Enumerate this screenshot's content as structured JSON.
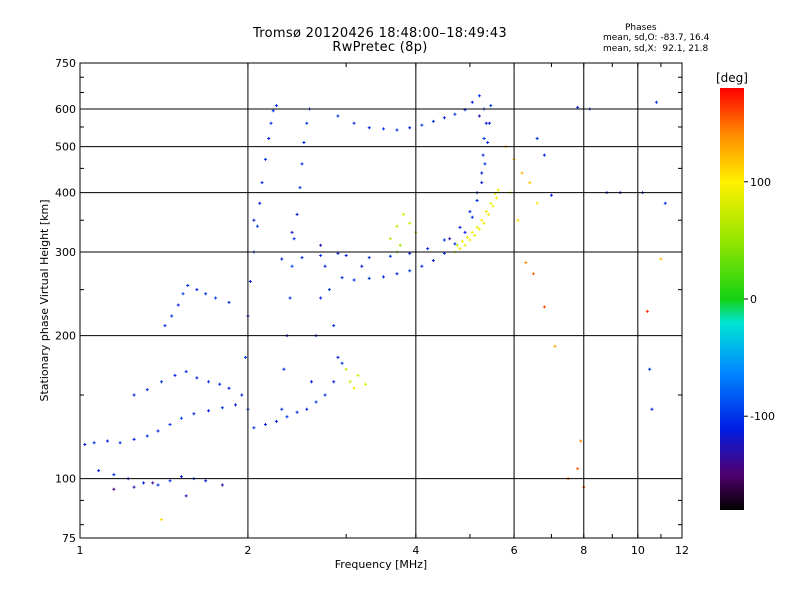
{
  "header": {
    "title_line1": "Tromsø 20120426 18:48:00–18:49:43",
    "title_line2": "RwPretec (8p)"
  },
  "phases_box": {
    "heading": "Phases",
    "line1": "mean, sd,O: -83.7, 16.4",
    "line2": "mean, sd,X:  92.1, 21.8"
  },
  "colorbar": {
    "unit_label": "[deg]",
    "tick_labels": [
      "100",
      "0",
      "-100"
    ],
    "ticks": [
      100,
      0,
      -100
    ],
    "range": [
      -180,
      180
    ]
  },
  "chart_data": {
    "type": "scatter",
    "title": "Tromsø 20120426 18:48:00–18:49:43",
    "subtitle": "RwPretec (8p)",
    "xlabel": "Frequency [MHz]",
    "ylabel": "Stationary phase Virtual Height [km]",
    "x_scale": "log",
    "y_scale": "log",
    "xlim": [
      1,
      12
    ],
    "ylim": [
      75,
      750
    ],
    "x_ticks": [
      1,
      2,
      4,
      6,
      8,
      10,
      12
    ],
    "x_tick_labels": [
      "1",
      "2",
      "4",
      "6",
      "8",
      "10",
      "12"
    ],
    "x_gridlines": [
      2,
      4,
      6,
      8,
      10
    ],
    "y_ticks": [
      75,
      100,
      200,
      300,
      400,
      500,
      600,
      750
    ],
    "y_tick_labels": [
      "75",
      "100",
      "200",
      "300",
      "400",
      "500",
      "600",
      "750"
    ],
    "y_gridlines": [
      100,
      200,
      300,
      400,
      500,
      600
    ],
    "grid": true,
    "colormap": "rainbow (black-purple-blue-cyan-green-yellow-red)",
    "color_quantity": "phase [deg]",
    "series": [
      {
        "points": [
          [
            1.02,
            118,
            -110
          ],
          [
            1.06,
            119,
            -105
          ],
          [
            1.12,
            120,
            -110
          ],
          [
            1.18,
            119,
            -100
          ],
          [
            1.25,
            121,
            -110
          ],
          [
            1.32,
            123,
            -105
          ],
          [
            1.38,
            126,
            -110
          ],
          [
            1.45,
            130,
            -100
          ],
          [
            1.52,
            134,
            -95
          ],
          [
            1.6,
            137,
            -105
          ],
          [
            1.7,
            139,
            -110
          ],
          [
            1.8,
            141,
            -100
          ],
          [
            1.9,
            143,
            -110
          ],
          [
            2.0,
            140,
            -95
          ],
          [
            1.08,
            104,
            -110
          ],
          [
            1.15,
            102,
            -105
          ],
          [
            1.22,
            100,
            -115
          ],
          [
            1.3,
            98,
            -110
          ],
          [
            1.38,
            97,
            -105
          ],
          [
            1.45,
            99,
            -100
          ],
          [
            1.52,
            101,
            -110
          ],
          [
            1.6,
            100,
            -105
          ],
          [
            1.68,
            99,
            -115
          ],
          [
            1.25,
            150,
            -110
          ],
          [
            1.32,
            154,
            -105
          ],
          [
            1.4,
            160,
            -100
          ],
          [
            1.48,
            165,
            -110
          ],
          [
            1.55,
            168,
            -105
          ],
          [
            1.62,
            163,
            -110
          ],
          [
            1.7,
            160,
            -100
          ],
          [
            1.78,
            158,
            -105
          ],
          [
            1.85,
            155,
            -110
          ],
          [
            1.42,
            210,
            -105
          ],
          [
            1.46,
            220,
            -100
          ],
          [
            1.5,
            232,
            -110
          ],
          [
            1.53,
            245,
            -95
          ],
          [
            1.56,
            255,
            -105
          ],
          [
            1.62,
            250,
            -110
          ],
          [
            1.68,
            245,
            -100
          ],
          [
            1.75,
            240,
            -95
          ],
          [
            1.85,
            235,
            -105
          ],
          [
            1.95,
            150,
            -110
          ],
          [
            1.98,
            180,
            -100
          ],
          [
            2.0,
            220,
            -105
          ],
          [
            2.02,
            260,
            -110
          ],
          [
            2.05,
            300,
            -100
          ],
          [
            2.08,
            340,
            -95
          ],
          [
            2.1,
            380,
            -110
          ],
          [
            2.12,
            420,
            -105
          ],
          [
            2.15,
            470,
            -100
          ],
          [
            2.18,
            520,
            -110
          ],
          [
            2.2,
            560,
            -105
          ],
          [
            2.22,
            595,
            -100
          ],
          [
            2.25,
            610,
            -110
          ],
          [
            2.3,
            140,
            -100
          ],
          [
            2.32,
            170,
            -105
          ],
          [
            2.35,
            200,
            -110
          ],
          [
            2.38,
            240,
            -100
          ],
          [
            2.4,
            280,
            -95
          ],
          [
            2.42,
            320,
            -105
          ],
          [
            2.45,
            360,
            -110
          ],
          [
            2.48,
            410,
            -100
          ],
          [
            2.5,
            460,
            -105
          ],
          [
            2.52,
            510,
            -110
          ],
          [
            2.55,
            560,
            -100
          ],
          [
            2.58,
            600,
            -105
          ],
          [
            2.6,
            160,
            -110
          ],
          [
            2.65,
            200,
            -100
          ],
          [
            2.7,
            240,
            -105
          ],
          [
            2.75,
            280,
            -110
          ],
          [
            2.8,
            250,
            -100
          ],
          [
            2.85,
            210,
            -105
          ],
          [
            2.9,
            180,
            -110
          ],
          [
            2.05,
            128,
            -100
          ],
          [
            2.15,
            130,
            -105
          ],
          [
            2.25,
            132,
            -110
          ],
          [
            2.35,
            135,
            -100
          ],
          [
            2.45,
            138,
            -105
          ],
          [
            2.55,
            140,
            -110
          ],
          [
            2.65,
            145,
            -100
          ],
          [
            2.75,
            150,
            -105
          ],
          [
            2.85,
            160,
            -110
          ],
          [
            2.95,
            175,
            -100
          ],
          [
            2.3,
            290,
            -110
          ],
          [
            2.5,
            292,
            -105
          ],
          [
            2.7,
            295,
            -100
          ],
          [
            2.9,
            298,
            -110
          ],
          [
            2.95,
            265,
            -105
          ],
          [
            3.1,
            262,
            -110
          ],
          [
            3.3,
            264,
            -100
          ],
          [
            3.5,
            266,
            -105
          ],
          [
            3.7,
            270,
            -110
          ],
          [
            3.9,
            274,
            -100
          ],
          [
            4.1,
            280,
            -105
          ],
          [
            4.3,
            288,
            -110
          ],
          [
            4.5,
            298,
            -100
          ],
          [
            4.7,
            312,
            -105
          ],
          [
            4.9,
            330,
            -110
          ],
          [
            5.05,
            355,
            -100
          ],
          [
            5.15,
            385,
            -105
          ],
          [
            5.25,
            420,
            -110
          ],
          [
            5.32,
            460,
            -100
          ],
          [
            5.38,
            510,
            -105
          ],
          [
            5.42,
            560,
            -110
          ],
          [
            5.45,
            610,
            -100
          ],
          [
            3.0,
            295,
            -110
          ],
          [
            3.3,
            292,
            -105
          ],
          [
            3.6,
            294,
            -100
          ],
          [
            3.9,
            298,
            -110
          ],
          [
            4.2,
            305,
            -105
          ],
          [
            4.5,
            318,
            -100
          ],
          [
            4.8,
            338,
            -110
          ],
          [
            5.0,
            365,
            -105
          ],
          [
            5.15,
            400,
            -100
          ],
          [
            2.9,
            580,
            -100
          ],
          [
            3.1,
            560,
            -105
          ],
          [
            3.3,
            548,
            -110
          ],
          [
            3.5,
            545,
            -100
          ],
          [
            3.7,
            542,
            -105
          ],
          [
            3.9,
            548,
            -110
          ],
          [
            4.1,
            555,
            -100
          ],
          [
            4.3,
            565,
            -105
          ],
          [
            4.5,
            575,
            -110
          ],
          [
            4.7,
            585,
            -100
          ],
          [
            4.9,
            598,
            -105
          ],
          [
            5.05,
            620,
            -110
          ],
          [
            5.2,
            640,
            -100
          ],
          [
            5.3,
            600,
            -105
          ],
          [
            5.35,
            560,
            -110
          ],
          [
            5.3,
            520,
            -100
          ],
          [
            5.28,
            480,
            -105
          ],
          [
            5.25,
            440,
            -110
          ],
          [
            2.05,
            350,
            -120
          ],
          [
            2.4,
            330,
            -125
          ],
          [
            2.7,
            310,
            -130
          ],
          [
            3.2,
            280,
            -120
          ],
          [
            4.6,
            320,
            -125
          ],
          [
            5.2,
            580,
            -130
          ],
          [
            1.15,
            95,
            -140
          ],
          [
            1.25,
            96,
            -130
          ],
          [
            1.35,
            98,
            -135
          ],
          [
            1.55,
            92,
            -125
          ],
          [
            1.8,
            97,
            -130
          ],
          [
            6.6,
            520,
            -100
          ],
          [
            6.8,
            480,
            -105
          ],
          [
            7.0,
            395,
            -110
          ],
          [
            7.8,
            605,
            -105
          ],
          [
            8.2,
            600,
            -110
          ],
          [
            8.8,
            400,
            -105
          ],
          [
            9.3,
            400,
            -110
          ],
          [
            10.2,
            400,
            -105
          ],
          [
            10.8,
            620,
            -100
          ],
          [
            11.2,
            380,
            -105
          ],
          [
            10.5,
            170,
            -100
          ],
          [
            10.6,
            140,
            -110
          ]
        ]
      },
      {
        "points": [
          [
            4.7,
            300,
            90
          ],
          [
            4.8,
            305,
            95
          ],
          [
            4.9,
            310,
            85
          ],
          [
            5.0,
            318,
            92
          ],
          [
            5.1,
            325,
            88
          ],
          [
            5.2,
            335,
            95
          ],
          [
            5.3,
            345,
            90
          ],
          [
            5.4,
            360,
            98
          ],
          [
            5.5,
            375,
            92
          ],
          [
            5.58,
            390,
            95
          ],
          [
            5.62,
            405,
            88
          ],
          [
            4.75,
            310,
            80
          ],
          [
            4.85,
            316,
            100
          ],
          [
            4.95,
            322,
            90
          ],
          [
            5.05,
            330,
            95
          ],
          [
            5.15,
            338,
            85
          ],
          [
            5.25,
            350,
            100
          ],
          [
            5.35,
            365,
            92
          ],
          [
            5.45,
            380,
            88
          ],
          [
            5.55,
            398,
            95
          ],
          [
            3.6,
            320,
            60
          ],
          [
            3.7,
            340,
            70
          ],
          [
            3.8,
            360,
            80
          ],
          [
            3.9,
            345,
            75
          ],
          [
            4.0,
            330,
            65
          ],
          [
            3.7,
            300,
            40
          ],
          [
            3.75,
            310,
            50
          ],
          [
            3.0,
            170,
            70
          ],
          [
            3.05,
            160,
            80
          ],
          [
            3.1,
            155,
            90
          ],
          [
            3.15,
            165,
            75
          ],
          [
            3.25,
            158,
            85
          ],
          [
            5.8,
            500,
            120
          ],
          [
            6.0,
            470,
            110
          ],
          [
            6.2,
            440,
            125
          ],
          [
            6.4,
            420,
            115
          ],
          [
            6.6,
            380,
            105
          ],
          [
            5.9,
            400,
            100
          ],
          [
            6.1,
            350,
            110
          ],
          [
            6.3,
            285,
            140
          ],
          [
            6.5,
            270,
            150
          ],
          [
            6.8,
            230,
            160
          ],
          [
            7.1,
            190,
            130
          ],
          [
            7.5,
            100,
            145
          ],
          [
            7.8,
            105,
            150
          ],
          [
            8.0,
            96,
            160
          ],
          [
            10.4,
            225,
            170
          ],
          [
            11.0,
            290,
            120
          ],
          [
            7.9,
            120,
            140
          ],
          [
            1.4,
            82,
            110
          ]
        ]
      }
    ]
  }
}
